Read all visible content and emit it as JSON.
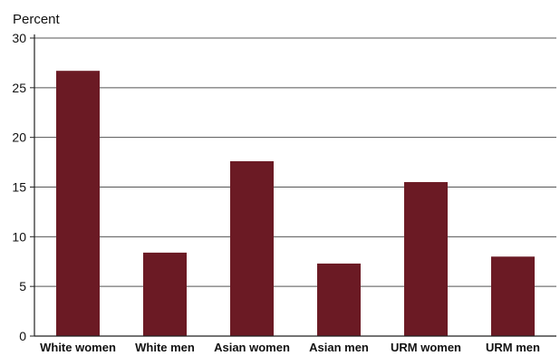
{
  "chart_data": {
    "type": "bar",
    "title": "",
    "xlabel": "",
    "ylabel": "Percent",
    "categories": [
      "White women",
      "White men",
      "Asian women",
      "Asian men",
      "URM women",
      "URM men"
    ],
    "values": [
      26.7,
      8.4,
      17.6,
      7.3,
      15.5,
      8.0
    ],
    "ylim": [
      0,
      30
    ],
    "yticks": [
      0,
      5,
      10,
      15,
      20,
      25,
      30
    ],
    "grid": true,
    "legend": "none",
    "bar_color": "#6b1a24",
    "grid_color": "#555555"
  }
}
